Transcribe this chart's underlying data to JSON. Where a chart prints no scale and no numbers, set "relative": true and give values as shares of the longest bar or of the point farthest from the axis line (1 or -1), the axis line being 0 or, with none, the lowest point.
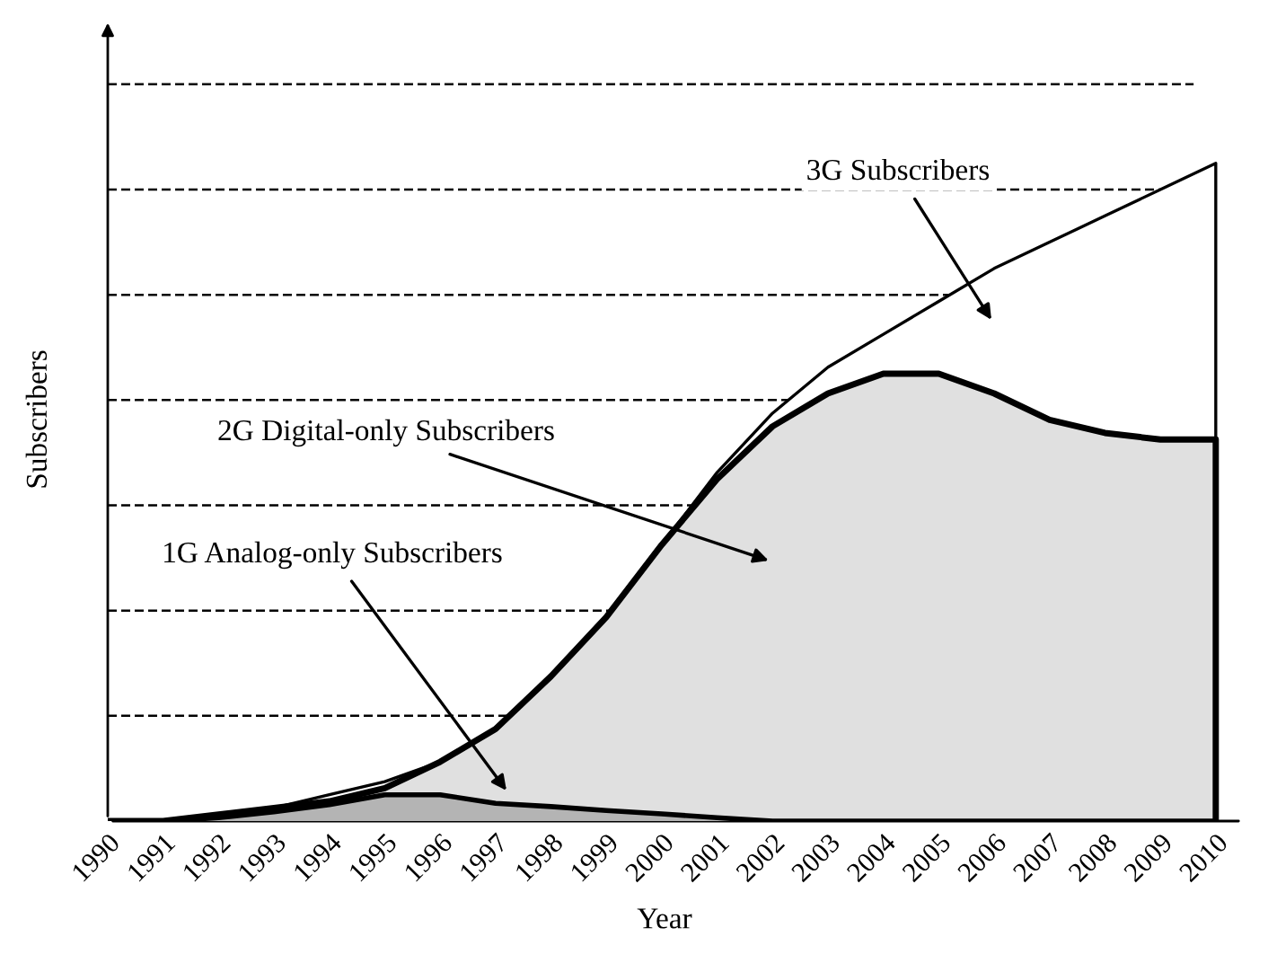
{
  "chart_data": {
    "type": "area",
    "relative": true,
    "xlabel": "Year",
    "ylabel": "Subscribers",
    "legend": false,
    "categories": [
      "1990",
      "1991",
      "1992",
      "1993",
      "1994",
      "1995",
      "1996",
      "1997",
      "1998",
      "1999",
      "2000",
      "2001",
      "2002",
      "2003",
      "2004",
      "2005",
      "2006",
      "2007",
      "2008",
      "2009",
      "2010"
    ],
    "series": [
      {
        "color": "#ffffff",
        "values": [
          0,
          0,
          0.01,
          0.02,
          0.04,
          0.06,
          0.09,
          0.14,
          0.22,
          0.31,
          0.42,
          0.53,
          0.62,
          0.69,
          0.74,
          0.79,
          0.84,
          0.88,
          0.92,
          0.96,
          1
        ]
      },
      {
        "color": "#e0e0e0",
        "values": [
          0,
          0,
          0.01,
          0.02,
          0.03,
          0.05,
          0.09,
          0.14,
          0.22,
          0.31,
          0.42,
          0.52,
          0.6,
          0.65,
          0.68,
          0.68,
          0.65,
          0.61,
          0.59,
          0.58,
          0.58
        ]
      },
      {
        "color": "#b4b4b4",
        "values": [
          0,
          0,
          0.005,
          0.014,
          0.025,
          0.04,
          0.04,
          0.027,
          0.022,
          0.016,
          0.011,
          0.005,
          0,
          0,
          0,
          0,
          0,
          0,
          0,
          0,
          0
        ]
      }
    ],
    "ref_lines": [
      {
        "axis": "y",
        "value": 0.16,
        "line_style": "dashed",
        "color": "#000000"
      },
      {
        "axis": "y",
        "value": 0.32,
        "line_style": "dashed",
        "color": "#000000"
      },
      {
        "axis": "y",
        "value": 0.48,
        "line_style": "dashed",
        "color": "#000000"
      },
      {
        "axis": "y",
        "value": 0.64,
        "line_style": "dashed",
        "color": "#000000"
      },
      {
        "axis": "y",
        "value": 0.8,
        "line_style": "dashed",
        "color": "#000000"
      },
      {
        "axis": "y",
        "value": 0.96,
        "line_style": "dashed",
        "color": "#000000"
      },
      {
        "axis": "y",
        "value": 1.12,
        "line_style": "dashed",
        "color": "#000000"
      }
    ],
    "annotations": [
      "3G Subscribers",
      "2G Digital-only Subscribers",
      "1G Analog-only Subscribers"
    ]
  }
}
